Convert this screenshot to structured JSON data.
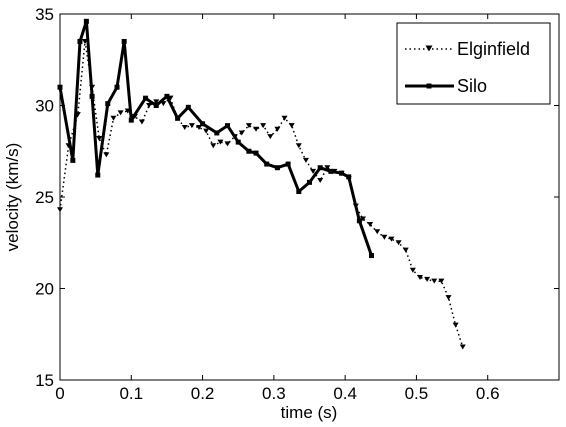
{
  "chart_data": {
    "type": "line",
    "xlabel": "time (s)",
    "ylabel": "velocity (km/s)",
    "xlim": [
      0,
      0.7
    ],
    "ylim": [
      15,
      35
    ],
    "xticks": [
      0,
      0.1,
      0.2,
      0.3,
      0.4,
      0.5,
      0.6
    ],
    "xtick_labels": [
      "0",
      "0.1",
      "0.2",
      "0.3",
      "0.4",
      "0.5",
      "0.6"
    ],
    "yticks": [
      15,
      20,
      25,
      30,
      35
    ],
    "ytick_labels": [
      "15",
      "20",
      "25",
      "30",
      "35"
    ],
    "grid": false,
    "legend": "top-right",
    "series": [
      {
        "name": "Elginfield",
        "style": "dotted",
        "marker": "triangle-down",
        "color": "#000000",
        "x": [
          0,
          0.012,
          0.025,
          0.035,
          0.045,
          0.055,
          0.065,
          0.075,
          0.085,
          0.095,
          0.105,
          0.115,
          0.125,
          0.135,
          0.145,
          0.155,
          0.165,
          0.175,
          0.185,
          0.195,
          0.205,
          0.215,
          0.225,
          0.235,
          0.245,
          0.255,
          0.265,
          0.275,
          0.285,
          0.295,
          0.305,
          0.315,
          0.325,
          0.335,
          0.345,
          0.355,
          0.365,
          0.375,
          0.385,
          0.395,
          0.405,
          0.415,
          0.425,
          0.435,
          0.445,
          0.455,
          0.465,
          0.475,
          0.485,
          0.495,
          0.505,
          0.515,
          0.525,
          0.535,
          0.545,
          0.555,
          0.565
        ],
        "y": [
          24.3,
          27.8,
          29.5,
          33.5,
          31.0,
          28.2,
          27.3,
          29.3,
          29.6,
          29.7,
          29.4,
          29.1,
          30.0,
          30.2,
          30.1,
          30.4,
          29.3,
          28.8,
          28.9,
          28.8,
          28.6,
          27.8,
          28.0,
          27.9,
          28.3,
          28.5,
          28.9,
          28.7,
          28.9,
          28.3,
          28.7,
          29.3,
          28.9,
          27.8,
          27.0,
          26.4,
          25.9,
          26.6,
          26.4,
          26.3,
          26.0,
          24.5,
          23.8,
          23.5,
          23.1,
          22.8,
          22.7,
          22.5,
          22.1,
          21.0,
          20.6,
          20.5,
          20.4,
          20.4,
          19.5,
          18.0,
          16.8
        ]
      },
      {
        "name": "Silo",
        "style": "solid",
        "marker": "square",
        "color": "#000000",
        "x": [
          0,
          0.018,
          0.028,
          0.037,
          0.045,
          0.053,
          0.067,
          0.08,
          0.09,
          0.1,
          0.12,
          0.135,
          0.15,
          0.165,
          0.18,
          0.2,
          0.22,
          0.235,
          0.25,
          0.265,
          0.275,
          0.29,
          0.305,
          0.32,
          0.335,
          0.35,
          0.365,
          0.38,
          0.395,
          0.405,
          0.42,
          0.437
        ],
        "y": [
          31.0,
          27.0,
          33.5,
          34.6,
          30.5,
          26.2,
          30.1,
          31.0,
          33.5,
          29.2,
          30.4,
          30.0,
          30.5,
          29.3,
          29.9,
          29.0,
          28.5,
          28.9,
          28.0,
          27.5,
          27.4,
          26.8,
          26.6,
          26.8,
          25.3,
          25.8,
          26.6,
          26.4,
          26.3,
          26.1,
          23.7,
          21.8
        ]
      }
    ]
  }
}
